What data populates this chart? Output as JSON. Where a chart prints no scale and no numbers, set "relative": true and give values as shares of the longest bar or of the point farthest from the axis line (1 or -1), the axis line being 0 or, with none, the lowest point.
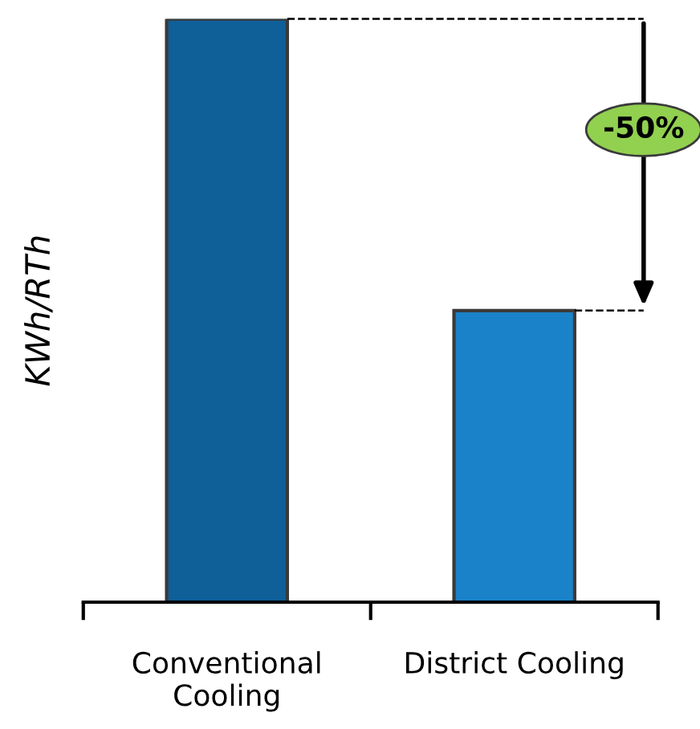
{
  "chart_data": {
    "type": "bar",
    "ylabel": "KWh/RTh",
    "relative": true,
    "categories": [
      "Conventional\nCooling",
      "District Cooling"
    ],
    "colors": [
      "#0f5f99",
      "#1a82c8"
    ],
    "values": [
      1,
      0.5
    ],
    "grid": false,
    "ref_lines": [
      {
        "axis": "y",
        "value": 1,
        "line_style": "dashed",
        "color": "#000000"
      },
      {
        "axis": "y",
        "value": 0.5,
        "line_style": "dashed",
        "color": "#000000"
      }
    ],
    "annotations": [
      "-50%"
    ]
  }
}
